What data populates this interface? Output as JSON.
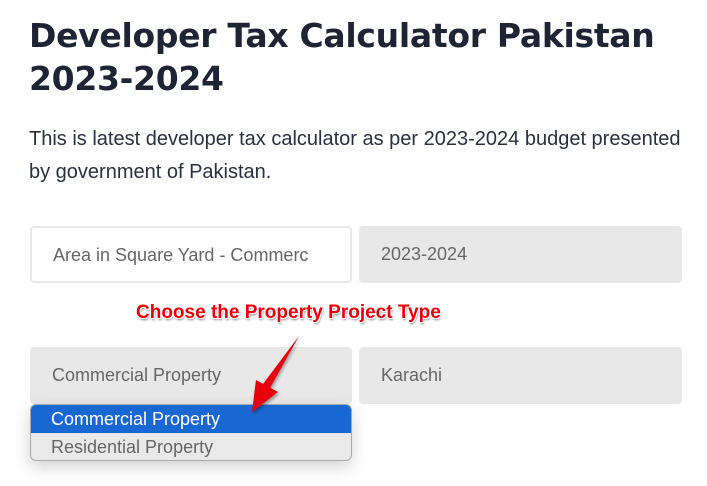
{
  "page": {
    "title": "Developer Tax Calculator Pakistan 2023-2024",
    "description": "This is latest developer tax calculator as per 2023-2024 budget presented by government of Pakistan."
  },
  "form": {
    "area_placeholder": "Area in Square Yard - Commerc",
    "tax_year": "2023-2024",
    "property_type": "Commercial Property",
    "city": "Karachi",
    "property_type_options": [
      {
        "label": "Commercial Property",
        "selected": true
      },
      {
        "label": "Residential Property",
        "selected": false
      }
    ]
  },
  "annotation": {
    "text": "Choose the Property Project Type",
    "color": "#e8000b"
  },
  "colors": {
    "selected_option": "#1967d2",
    "field_bg": "#e8e8e8"
  }
}
